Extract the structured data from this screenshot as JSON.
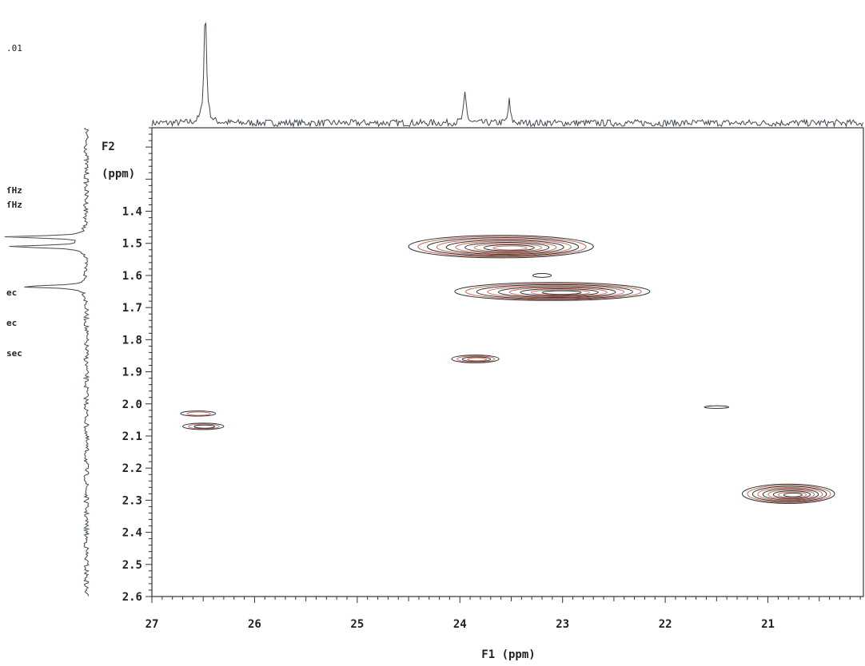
{
  "param_fragments": [
    ".01",
    "ſHz",
    "ſHz",
    "ec",
    "ec",
    "sec"
  ],
  "chart_data": {
    "type": "contour",
    "title": "",
    "xlabel": "F1 (ppm)",
    "ylabel_line1": "F2",
    "ylabel_line2": "(ppm)",
    "x_axis_reversed": true,
    "y_axis_reversed": true,
    "xlim": [
      27.0,
      20.07
    ],
    "ylim": [
      1.14,
      2.6
    ],
    "x_ticks": [
      27,
      26,
      25,
      24,
      23,
      22,
      21
    ],
    "x_tick_labels": [
      "27",
      "26",
      "25",
      "24",
      "23",
      "22",
      "21"
    ],
    "y_ticks": [
      1.4,
      1.5,
      1.6,
      1.7,
      1.8,
      1.9,
      2.0,
      2.1,
      2.2,
      2.3,
      2.4,
      2.5,
      2.6
    ],
    "y_tick_labels": [
      "1.4",
      "1.5",
      "1.6",
      "1.7",
      "1.8",
      "1.9",
      "2.0",
      "2.1",
      "2.2",
      "2.3",
      "2.4",
      "2.5",
      "2.6"
    ],
    "grid": false,
    "cross_peaks": [
      {
        "f1": 23.6,
        "f2": 1.51,
        "f1_halfwidth": 0.9,
        "f2_halfwidth": 0.035,
        "levels": 10
      },
      {
        "f1": 23.1,
        "f2": 1.65,
        "f1_halfwidth": 0.95,
        "f2_halfwidth": 0.028,
        "levels": 9
      },
      {
        "f1": 23.2,
        "f2": 1.6,
        "f1_halfwidth": 0.09,
        "f2_halfwidth": 0.006,
        "levels": 1
      },
      {
        "f1": 23.85,
        "f2": 1.86,
        "f1_halfwidth": 0.23,
        "f2_halfwidth": 0.012,
        "levels": 4
      },
      {
        "f1": 26.55,
        "f2": 2.03,
        "f1_halfwidth": 0.17,
        "f2_halfwidth": 0.008,
        "levels": 2
      },
      {
        "f1": 26.5,
        "f2": 2.07,
        "f1_halfwidth": 0.2,
        "f2_halfwidth": 0.01,
        "levels": 3
      },
      {
        "f1": 21.5,
        "f2": 2.01,
        "f1_halfwidth": 0.12,
        "f2_halfwidth": 0.004,
        "levels": 1
      },
      {
        "f1": 20.8,
        "f2": 2.28,
        "f1_halfwidth": 0.45,
        "f2_halfwidth": 0.03,
        "levels": 9
      }
    ],
    "projection_f1": {
      "baseline_noise": 0.03,
      "peaks": [
        {
          "ppm": 26.48,
          "height": 1.0,
          "width": 0.015
        },
        {
          "ppm": 23.95,
          "height": 0.26,
          "width": 0.015
        },
        {
          "ppm": 23.52,
          "height": 0.2,
          "width": 0.012
        }
      ]
    },
    "projection_f2": {
      "baseline_noise": 0.03,
      "peaks": [
        {
          "ppm": 1.48,
          "height": 1.0,
          "width": 0.004
        },
        {
          "ppm": 1.51,
          "height": 1.0,
          "width": 0.004
        },
        {
          "ppm": 1.635,
          "height": 0.85,
          "width": 0.004
        }
      ]
    },
    "colors": {
      "outer_contour": "#2a3038",
      "inner_contour": "#c96a52",
      "axis": "#333333",
      "trace": "#3c4652"
    }
  }
}
